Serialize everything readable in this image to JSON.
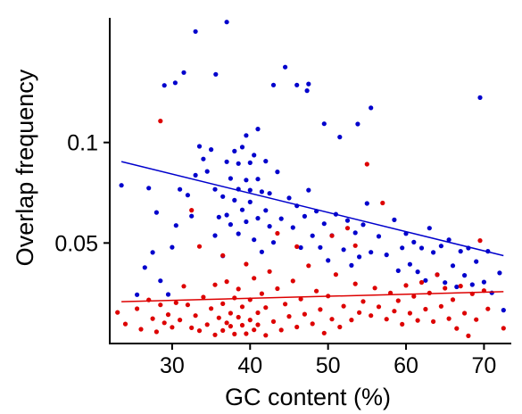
{
  "chart_data": {
    "type": "scatter",
    "title": "",
    "xlabel": "GC content (%)",
    "ylabel": "Overlap frequency",
    "xlim": [
      22,
      73.5
    ],
    "ylim": [
      0.0,
      0.162
    ],
    "x_ticks": [
      30,
      40,
      50,
      60,
      70
    ],
    "x_tick_labels": [
      "30",
      "40",
      "50",
      "60",
      "70"
    ],
    "y_ticks": [
      0.05,
      0.1
    ],
    "y_tick_labels": [
      "0.05",
      "0.1"
    ],
    "grid": false,
    "legend": "none",
    "series": [
      {
        "color": "#0000cc",
        "points": [
          [
            23.5,
            0.0787
          ],
          [
            25.5,
            0.0243
          ],
          [
            26.5,
            0.0378
          ],
          [
            27,
            0.0773
          ],
          [
            27.5,
            0.0453
          ],
          [
            28,
            0.0652
          ],
          [
            28.5,
            0.0312
          ],
          [
            29,
            0.1284
          ],
          [
            29.5,
            0.0244
          ],
          [
            30,
            0.0479
          ],
          [
            30.5,
            0.0587
          ],
          [
            31,
            0.0767
          ],
          [
            31.5,
            0.1348
          ],
          [
            32,
            0.0738
          ],
          [
            32.5,
            0.0634
          ],
          [
            33,
            0.0837
          ],
          [
            33.5,
            0.0981
          ],
          [
            34,
            0.0918
          ],
          [
            34.5,
            0.0856
          ],
          [
            35,
            0.0965
          ],
          [
            35.5,
            0.0767
          ],
          [
            35.5,
            0.0537
          ],
          [
            36,
            0.0629
          ],
          [
            36.5,
            0.0731
          ],
          [
            36.5,
            0.0436
          ],
          [
            37,
            0.0639
          ],
          [
            37,
            0.0904
          ],
          [
            37.5,
            0.0821
          ],
          [
            37.5,
            0.0592
          ],
          [
            38,
            0.0713
          ],
          [
            38,
            0.0957
          ],
          [
            38.5,
            0.0768
          ],
          [
            38.5,
            0.0546
          ],
          [
            38.5,
            0.0895
          ],
          [
            39,
            0.0665
          ],
          [
            39,
            0.0977
          ],
          [
            39.5,
            0.0813
          ],
          [
            39.5,
            0.0606
          ],
          [
            39.5,
            0.1035
          ],
          [
            40,
            0.0763
          ],
          [
            40,
            0.0899
          ],
          [
            40,
            0.0704
          ],
          [
            40.5,
            0.0937
          ],
          [
            40.5,
            0.0516
          ],
          [
            41,
            0.0818
          ],
          [
            41,
            0.0623
          ],
          [
            41,
            0.1067
          ],
          [
            41.5,
            0.0755
          ],
          [
            41.5,
            0.0456
          ],
          [
            42,
            0.0907
          ],
          [
            42,
            0.0662
          ],
          [
            42.5,
            0.0583
          ],
          [
            42.5,
            0.0747
          ],
          [
            43,
            0.0503
          ],
          [
            43.5,
            0.0854
          ],
          [
            44,
            0.0621
          ],
          [
            44.5,
            0.1375
          ],
          [
            45,
            0.0724
          ],
          [
            45.5,
            0.0577
          ],
          [
            46,
            0.0685
          ],
          [
            46.5,
            0.0477
          ],
          [
            47,
            0.0633
          ],
          [
            47.5,
            0.0763
          ],
          [
            48,
            0.0536
          ],
          [
            48.5,
            0.0658
          ],
          [
            49,
            0.0478
          ],
          [
            49.5,
            0.0596
          ],
          [
            50,
            0.0413
          ],
          [
            50.5,
            0.0537
          ],
          [
            51,
            0.0643
          ],
          [
            51.5,
            0.1027
          ],
          [
            52,
            0.0467
          ],
          [
            52.5,
            0.0612
          ],
          [
            53,
            0.0389
          ],
          [
            53.5,
            0.0551
          ],
          [
            54,
            0.0431
          ],
          [
            54.5,
            0.0591
          ],
          [
            55,
            0.0697
          ],
          [
            55.5,
            0.0454
          ],
          [
            56.5,
            0.0533
          ],
          [
            57.5,
            0.0441
          ],
          [
            58.5,
            0.0615
          ],
          [
            59,
            0.0362
          ],
          [
            59.5,
            0.0476
          ],
          [
            60,
            0.0547
          ],
          [
            60.5,
            0.0394
          ],
          [
            61,
            0.0504
          ],
          [
            61.5,
            0.0357
          ],
          [
            62,
            0.0475
          ],
          [
            62.5,
            0.0314
          ],
          [
            63,
            0.0574
          ],
          [
            63.5,
            0.0453
          ],
          [
            64,
            0.0342
          ],
          [
            64.5,
            0.0485
          ],
          [
            65,
            0.0303
          ],
          [
            65.5,
            0.0516
          ],
          [
            66,
            0.0387
          ],
          [
            66.5,
            0.0282
          ],
          [
            67,
            0.0459
          ],
          [
            67.5,
            0.0339
          ],
          [
            68,
            0.0475
          ],
          [
            68.5,
            0.0293
          ],
          [
            69,
            0.0408
          ],
          [
            69.5,
            0.1223
          ],
          [
            70,
            0.0306
          ],
          [
            70.5,
            0.0459
          ],
          [
            71,
            0.0252
          ],
          [
            72,
            0.0351
          ],
          [
            72.5,
            0.0166
          ],
          [
            30.4,
            0.1297
          ],
          [
            33,
            0.1552
          ],
          [
            35.6,
            0.1339
          ],
          [
            37,
            0.1599
          ],
          [
            43,
            0.1286
          ],
          [
            46,
            0.1286
          ],
          [
            47.3,
            0.1258
          ],
          [
            47.5,
            0.1291
          ],
          [
            49.5,
            0.1093
          ],
          [
            55.5,
            0.1172
          ],
          [
            53.8,
            0.1092
          ]
        ]
      },
      {
        "color": "#dd0000",
        "points": [
          [
            23,
            0.0155
          ],
          [
            24,
            0.0097
          ],
          [
            25.5,
            0.0173
          ],
          [
            26,
            0.0071
          ],
          [
            27,
            0.0217
          ],
          [
            27.5,
            0.0124
          ],
          [
            28,
            0.0058
          ],
          [
            28.5,
            0.0192
          ],
          [
            29,
            0.0103
          ],
          [
            29.5,
            0.0144
          ],
          [
            30,
            0.0081
          ],
          [
            30.5,
            0.0203
          ],
          [
            31,
            0.0117
          ],
          [
            31.5,
            0.0285
          ],
          [
            32,
            0.0192
          ],
          [
            32.5,
            0.0078
          ],
          [
            33,
            0.0139
          ],
          [
            33.5,
            0.0064
          ],
          [
            34,
            0.0231
          ],
          [
            34.5,
            0.0094
          ],
          [
            35,
            0.0174
          ],
          [
            35.5,
            0.0043
          ],
          [
            35.5,
            0.0292
          ],
          [
            36,
            0.0128
          ],
          [
            36.5,
            0.0065
          ],
          [
            36.5,
            0.0198
          ],
          [
            37,
            0.0103
          ],
          [
            37,
            0.0308
          ],
          [
            37.5,
            0.0151
          ],
          [
            37.5,
            0.0086
          ],
          [
            38,
            0.0227
          ],
          [
            38,
            0.0047
          ],
          [
            38.5,
            0.0131
          ],
          [
            38.5,
            0.0271
          ],
          [
            39,
            0.0091
          ],
          [
            39,
            0.0183
          ],
          [
            39.5,
            0.0049
          ],
          [
            39.5,
            0.0395
          ],
          [
            40,
            0.0117
          ],
          [
            40,
            0.0218
          ],
          [
            40.5,
            0.0068
          ],
          [
            40.5,
            0.0325
          ],
          [
            41,
            0.0153
          ],
          [
            41,
            0.0093
          ],
          [
            41.5,
            0.0248
          ],
          [
            42,
            0.0041
          ],
          [
            42,
            0.0179
          ],
          [
            42.5,
            0.0358
          ],
          [
            43,
            0.0109
          ],
          [
            43.5,
            0.0273
          ],
          [
            44,
            0.0067
          ],
          [
            44.5,
            0.0196
          ],
          [
            45,
            0.0135
          ],
          [
            45.5,
            0.0311
          ],
          [
            46,
            0.0082
          ],
          [
            46.5,
            0.0221
          ],
          [
            47,
            0.0146
          ],
          [
            47.5,
            0.0387
          ],
          [
            48,
            0.0098
          ],
          [
            48.5,
            0.0261
          ],
          [
            49,
            0.0169
          ],
          [
            49.5,
            0.0052
          ],
          [
            50,
            0.0236
          ],
          [
            50.5,
            0.0121
          ],
          [
            51,
            0.0343
          ],
          [
            51.5,
            0.0082
          ],
          [
            52,
            0.0186
          ],
          [
            52.5,
            0.0574
          ],
          [
            53,
            0.0117
          ],
          [
            53.5,
            0.0297
          ],
          [
            54,
            0.0154
          ],
          [
            54.5,
            0.0209
          ],
          [
            55,
            0.0892
          ],
          [
            55.5,
            0.0139
          ],
          [
            56,
            0.0276
          ],
          [
            56.5,
            0.0183
          ],
          [
            57,
            0.0699
          ],
          [
            57.5,
            0.0121
          ],
          [
            58,
            0.0251
          ],
          [
            58.5,
            0.0161
          ],
          [
            59,
            0.0213
          ],
          [
            59.5,
            0.0096
          ],
          [
            60,
            0.0289
          ],
          [
            60.5,
            0.0151
          ],
          [
            61,
            0.0235
          ],
          [
            61.5,
            0.0115
          ],
          [
            62,
            0.0304
          ],
          [
            62.5,
            0.0171
          ],
          [
            63,
            0.0251
          ],
          [
            63.5,
            0.0109
          ],
          [
            64,
            0.0342
          ],
          [
            64.5,
            0.0185
          ],
          [
            65,
            0.0275
          ],
          [
            65.5,
            0.0124
          ],
          [
            66,
            0.0218
          ],
          [
            66.5,
            0.0075
          ],
          [
            67,
            0.0286
          ],
          [
            67.5,
            0.0151
          ],
          [
            68,
            0.0038
          ],
          [
            68.5,
            0.0247
          ],
          [
            69,
            0.0119
          ],
          [
            69.5,
            0.0512
          ],
          [
            70,
            0.0263
          ],
          [
            70.5,
            0.0172
          ],
          [
            72.5,
            0.0076
          ],
          [
            28.5,
            0.1107
          ],
          [
            32.5,
            0.0663
          ],
          [
            33.5,
            0.0483
          ],
          [
            36.5,
            0.0438
          ],
          [
            43.5,
            0.0548
          ],
          [
            50.5,
            0.0536
          ],
          [
            53.5,
            0.0487
          ],
          [
            46,
            0.0482
          ]
        ]
      }
    ],
    "trend_lines": [
      {
        "color": "#0000cc",
        "x": [
          23.5,
          72.5
        ],
        "y": [
          0.0905,
          0.0437
        ]
      },
      {
        "color": "#dd0000",
        "x": [
          23.5,
          72.5
        ],
        "y": [
          0.0208,
          0.0258
        ]
      }
    ]
  }
}
